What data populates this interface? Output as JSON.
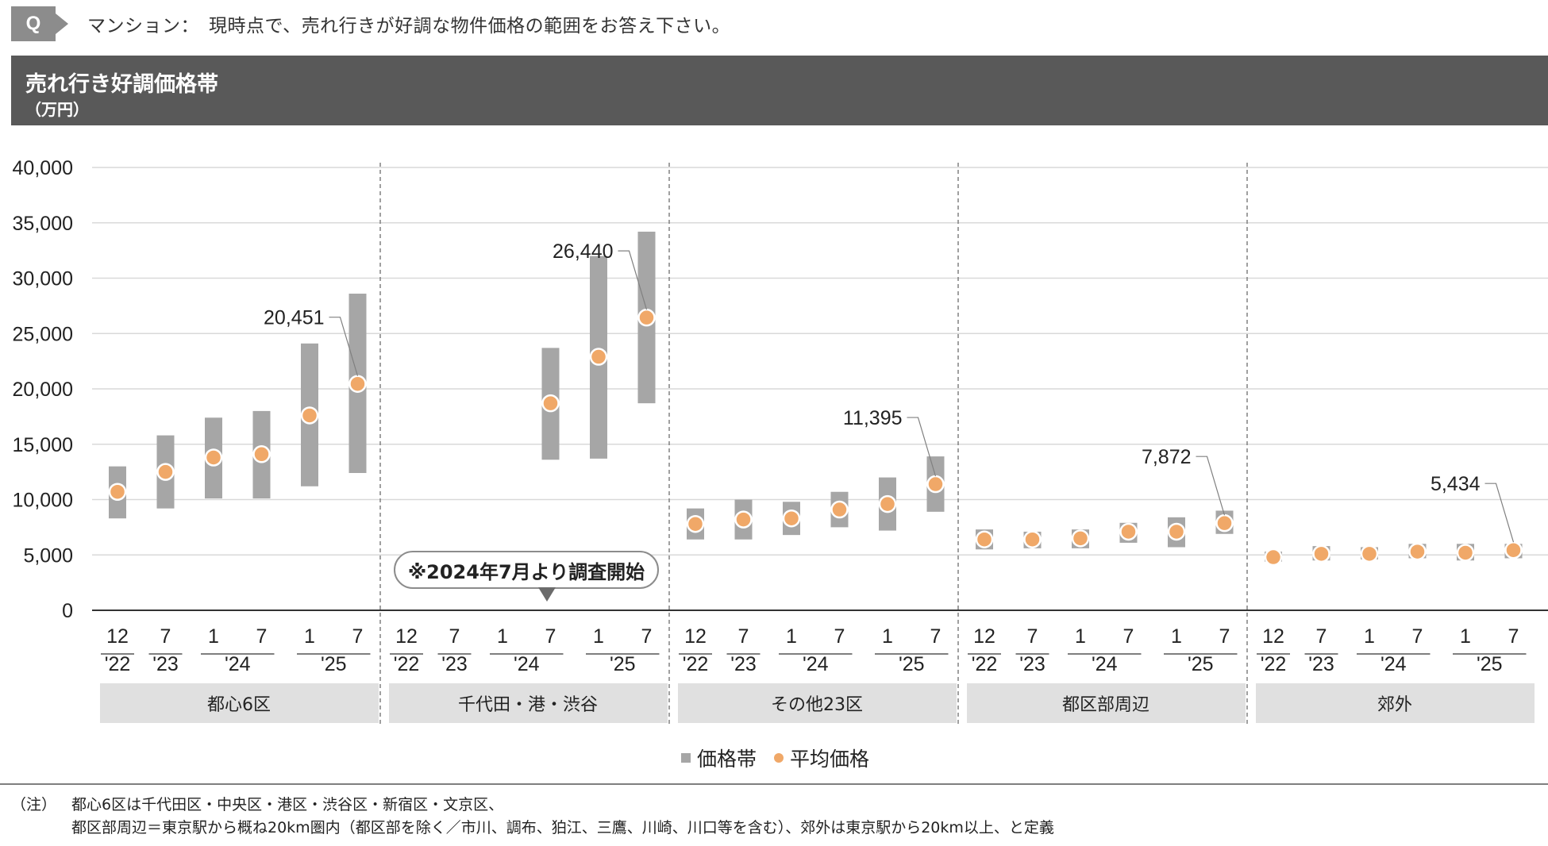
{
  "question": {
    "badge": "Q",
    "text": "マンション：　現時点で、売れ行きが好調な物件価格の範囲をお答え下さい。"
  },
  "header": {
    "title": "売れ行き好調価格帯",
    "unit": "（万円）"
  },
  "callout": "※2024年7月より調査開始",
  "legend": {
    "range": "価格帯",
    "average": "平均価格"
  },
  "notes": {
    "lead": "（注）",
    "line1": "都心6区は千代田区・中央区・港区・渋谷区・新宿区・文京区、",
    "line2": "都区部周辺＝東京駅から概ね20km圏内（都区部を除く／市川、調布、狛江、三鷹、川崎、川口等を含む）、郊外は東京駅から20km以上、と定義"
  },
  "colors": {
    "range_bar": "#a6a6a6",
    "average_dot": "#f0a868",
    "header_bg": "#595959",
    "group_bg": "#e0e0e0"
  },
  "chart_data": {
    "type": "range-bar-with-points",
    "ylim": [
      0,
      40000
    ],
    "yticks": [
      0,
      5000,
      10000,
      15000,
      20000,
      25000,
      30000,
      35000,
      40000
    ],
    "ytick_labels": [
      "0",
      "5,000",
      "10,000",
      "15,000",
      "20,000",
      "25,000",
      "30,000",
      "35,000",
      "40,000"
    ],
    "periods": [
      {
        "month": "12",
        "year": "'22"
      },
      {
        "month": "7",
        "year": "'23"
      },
      {
        "month": "1",
        "year": "'24"
      },
      {
        "month": "7",
        "year": "'24"
      },
      {
        "month": "1",
        "year": "'25"
      },
      {
        "month": "7",
        "year": "'25"
      }
    ],
    "groups": [
      {
        "name": "都心6区",
        "low": [
          8300,
          9200,
          10100,
          10100,
          11200,
          12400
        ],
        "high": [
          13000,
          15800,
          17400,
          18000,
          24100,
          28600
        ],
        "avg": [
          10700,
          12500,
          13800,
          14100,
          17600,
          20451
        ],
        "label": "20,451"
      },
      {
        "name": "千代田・港・渋谷",
        "low": [
          null,
          null,
          null,
          13600,
          13700,
          18700
        ],
        "high": [
          null,
          null,
          null,
          23700,
          32000,
          34200
        ],
        "avg": [
          null,
          null,
          null,
          18700,
          22900,
          26440
        ],
        "label": "26,440"
      },
      {
        "name": "その他23区",
        "low": [
          6400,
          6400,
          6800,
          7500,
          7200,
          8900
        ],
        "high": [
          9200,
          10000,
          9800,
          10700,
          12000,
          13900
        ],
        "avg": [
          7800,
          8200,
          8300,
          9100,
          9600,
          11395
        ],
        "label": "11,395"
      },
      {
        "name": "都区部周辺",
        "low": [
          5500,
          5600,
          5600,
          6100,
          5700,
          6900
        ],
        "high": [
          7300,
          7100,
          7300,
          7900,
          8400,
          9000
        ],
        "avg": [
          6400,
          6400,
          6500,
          7100,
          7100,
          7872
        ],
        "label": "7,872"
      },
      {
        "name": "郊外",
        "low": [
          4400,
          4500,
          4600,
          4700,
          4500,
          4700
        ],
        "high": [
          5300,
          5800,
          5700,
          6000,
          6000,
          6000
        ],
        "avg": [
          4800,
          5100,
          5100,
          5300,
          5200,
          5434
        ],
        "label": "5,434"
      }
    ]
  }
}
